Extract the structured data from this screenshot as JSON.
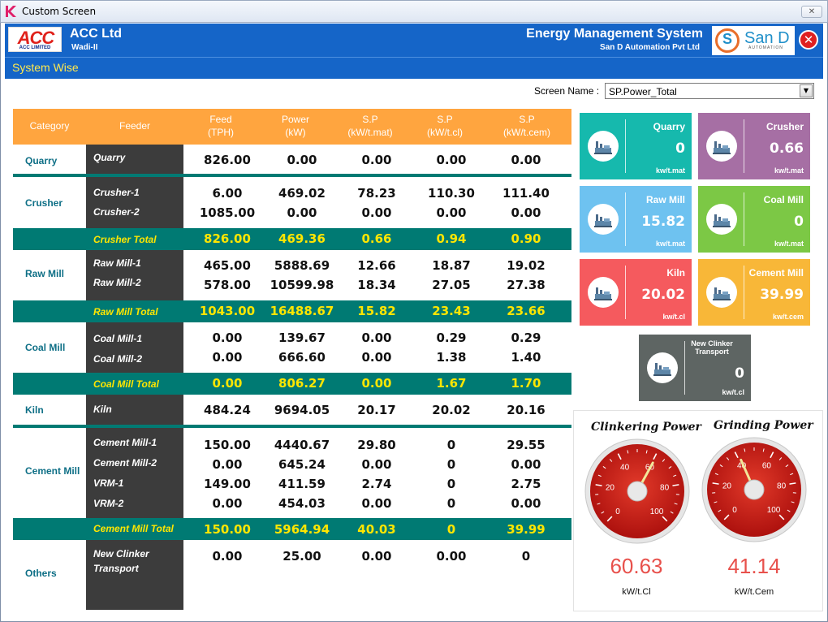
{
  "window": {
    "title": "Custom Screen"
  },
  "header": {
    "company_logo": "ACC",
    "company_logo_sub": "ACC LIMITED",
    "company": "ACC Ltd",
    "site": "Wadi-II",
    "system_title": "Energy Management System",
    "vendor": "San D Automation Pvt Ltd",
    "vendor_logo_text": "San D",
    "vendor_logo_sub": "AUTOMATION",
    "section": "System Wise"
  },
  "screen": {
    "label": "Screen Name :",
    "value": "SP.Power_Total"
  },
  "table": {
    "headers": [
      {
        "l1": "Category",
        "l2": ""
      },
      {
        "l1": "Feeder",
        "l2": ""
      },
      {
        "l1": "Feed",
        "l2": "(TPH)"
      },
      {
        "l1": "Power",
        "l2": "(kW)"
      },
      {
        "l1": "S.P",
        "l2": "(kW/t.mat)"
      },
      {
        "l1": "S.P",
        "l2": "(kW/t.cl)"
      },
      {
        "l1": "S.P",
        "l2": "(kW/t.cem)"
      }
    ],
    "categories": [
      "Quarry",
      "Crusher",
      "Raw Mill",
      "Coal Mill",
      "Kiln",
      "Cement Mill",
      "Others"
    ],
    "rows": [
      {
        "feeder": "Quarry",
        "v": [
          "826.00",
          "0.00",
          "0.00",
          "0.00",
          "0.00"
        ]
      },
      {
        "feeder": "Crusher-1",
        "v": [
          "6.00",
          "469.02",
          "78.23",
          "110.30",
          "111.40"
        ]
      },
      {
        "feeder": "Crusher-2",
        "v": [
          "1085.00",
          "0.00",
          "0.00",
          "0.00",
          "0.00"
        ]
      },
      {
        "feeder": "Raw Mill-1",
        "v": [
          "465.00",
          "5888.69",
          "12.66",
          "18.87",
          "19.02"
        ]
      },
      {
        "feeder": "Raw Mill-2",
        "v": [
          "578.00",
          "10599.98",
          "18.34",
          "27.05",
          "27.38"
        ]
      },
      {
        "feeder": "Coal Mill-1",
        "v": [
          "0.00",
          "139.67",
          "0.00",
          "0.29",
          "0.29"
        ]
      },
      {
        "feeder": "Coal Mill-2",
        "v": [
          "0.00",
          "666.60",
          "0.00",
          "1.38",
          "1.40"
        ]
      },
      {
        "feeder": "Kiln",
        "v": [
          "484.24",
          "9694.05",
          "20.17",
          "20.02",
          "20.16"
        ]
      },
      {
        "feeder": "Cement Mill-1",
        "v": [
          "150.00",
          "4440.67",
          "29.80",
          "0",
          "29.55"
        ]
      },
      {
        "feeder": "Cement Mill-2",
        "v": [
          "0.00",
          "645.24",
          "0.00",
          "0",
          "0.00"
        ]
      },
      {
        "feeder": "VRM-1",
        "v": [
          "149.00",
          "411.59",
          "2.74",
          "0",
          "2.75"
        ]
      },
      {
        "feeder": "VRM-2",
        "v": [
          "0.00",
          "454.03",
          "0.00",
          "0",
          "0.00"
        ]
      },
      {
        "feeder1": "New Clinker",
        "feeder2": "Transport",
        "v": [
          "0.00",
          "25.00",
          "0.00",
          "0.00",
          "0"
        ]
      }
    ],
    "totals": [
      {
        "label": "Crusher Total",
        "v": [
          "826.00",
          "469.36",
          "0.66",
          "0.94",
          "0.90"
        ]
      },
      {
        "label": "Raw Mill Total",
        "v": [
          "1043.00",
          "16488.67",
          "15.82",
          "23.43",
          "23.66"
        ]
      },
      {
        "label": "Coal Mill Total",
        "v": [
          "0.00",
          "806.27",
          "0.00",
          "1.67",
          "1.70"
        ]
      },
      {
        "label": "Cement Mill Total",
        "v": [
          "150.00",
          "5964.94",
          "40.03",
          "0",
          "39.99"
        ]
      }
    ]
  },
  "cards": [
    {
      "name": "Quarry",
      "value": "0",
      "unit": "kw/t.mat",
      "color": "#16b9ad"
    },
    {
      "name": "Crusher",
      "value": "0.66",
      "unit": "kw/t.mat",
      "color": "#a66fa4"
    },
    {
      "name": "Raw Mill",
      "value": "15.82",
      "unit": "kw/t.mat",
      "color": "#6ec2f0"
    },
    {
      "name": "Coal Mill",
      "value": "0",
      "unit": "kw/t.mat",
      "color": "#7cc845"
    },
    {
      "name": "Kiln",
      "value": "20.02",
      "unit": "kw/t.cl",
      "color": "#f55a5e"
    },
    {
      "name": "Cement Mill",
      "value": "39.99",
      "unit": "kw/t.cem",
      "color": "#f8b738"
    },
    {
      "name1": "New Clinker",
      "name2": "Transport",
      "value": "0",
      "unit": "kw/t.cl",
      "color": "#5e6563"
    }
  ],
  "gauges": [
    {
      "title": "Clinkering Power",
      "value": 60.63,
      "display": "60.63",
      "unit": "kW/t.Cl",
      "ticks": [
        "0",
        "20",
        "40",
        "60",
        "80",
        "100"
      ]
    },
    {
      "title": "Grinding Power",
      "value": 41.14,
      "display": "41.14",
      "unit": "kW/t.Cem",
      "ticks": [
        "0",
        "20",
        "40",
        "60",
        "80",
        "100"
      ]
    }
  ]
}
